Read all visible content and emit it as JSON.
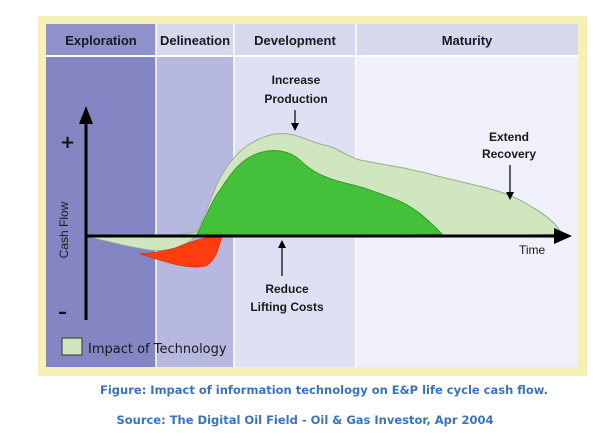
{
  "diagram": {
    "phases": [
      "Exploration",
      "Delineation",
      "Development",
      "Maturity"
    ],
    "annotations": {
      "increase_production": [
        "Increase",
        "Production"
      ],
      "extend_recovery": [
        "Extend",
        "Recovery"
      ],
      "reduce_lifting_costs": [
        "Reduce",
        "Lifting Costs"
      ]
    },
    "y_axis_label": "Cash Flow",
    "x_axis_label": "Time",
    "plus_sign": "+",
    "minus_sign": "–",
    "legend": {
      "label": "Impact of Technology",
      "swatch_color": "#cfe6be"
    },
    "colors": {
      "exploration_bg": "#8486c4",
      "delineation_bg": "#b6b8e0",
      "development_bg": "#dfe0f3",
      "maturity_bg": "#eff0f9",
      "outer_border": "#f6f0b4",
      "header_bg": "#d7d8ee",
      "tech_area": "#cfe6be",
      "base_area": "#44c13a",
      "loss_area": "#ff3d0f"
    }
  },
  "caption": {
    "title": "Figure: Impact of information technology on E&P life cycle cash flow.",
    "source": "Source: The Digital Oil Field - Oil & Gas Investor, Apr 2004"
  }
}
